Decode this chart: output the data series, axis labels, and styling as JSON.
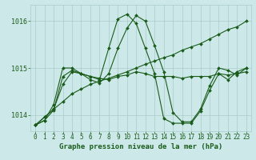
{
  "title": "Graphe pression niveau de la mer (hPa)",
  "bg_color": "#cce8e8",
  "grid_color": "#aacccc",
  "line_color": "#1a5c1a",
  "marker_color": "#1a5c1a",
  "ylim": [
    1013.65,
    1016.35
  ],
  "yticks": [
    1014,
    1015,
    1016
  ],
  "xlim": [
    -0.5,
    23.5
  ],
  "xticks": [
    0,
    1,
    2,
    3,
    4,
    5,
    6,
    7,
    8,
    9,
    10,
    11,
    12,
    13,
    14,
    15,
    16,
    17,
    18,
    19,
    20,
    21,
    22,
    23
  ],
  "series_spike": [
    1013.78,
    1013.88,
    1014.1,
    1014.82,
    1014.95,
    1014.88,
    1014.82,
    1014.75,
    1015.42,
    1016.05,
    1016.15,
    1015.95,
    1015.42,
    1014.88,
    1013.92,
    1013.82,
    1013.82,
    1013.82,
    1014.08,
    1014.52,
    1014.88,
    1014.75,
    1014.92,
    1015.0
  ],
  "series_linear": [
    1013.78,
    1013.95,
    1014.12,
    1014.28,
    1014.45,
    1014.55,
    1014.65,
    1014.72,
    1014.78,
    1014.85,
    1014.92,
    1015.0,
    1015.08,
    1015.15,
    1015.22,
    1015.28,
    1015.38,
    1015.45,
    1015.52,
    1015.62,
    1015.72,
    1015.82,
    1015.88,
    1016.0
  ],
  "series_mid": [
    1013.78,
    1013.95,
    1014.12,
    1014.65,
    1014.92,
    1014.88,
    1014.82,
    1014.78,
    1014.75,
    1014.82,
    1014.85,
    1014.92,
    1014.88,
    1014.82,
    1014.82,
    1014.82,
    1014.78,
    1014.82,
    1014.82,
    1014.82,
    1014.88,
    1014.85,
    1014.88,
    1014.92
  ],
  "series_wavy": [
    1013.78,
    1013.88,
    1014.22,
    1015.0,
    1015.0,
    1014.88,
    1014.75,
    1014.68,
    1014.88,
    1015.42,
    1015.85,
    1016.12,
    1016.0,
    1015.48,
    1014.92,
    1014.05,
    1013.85,
    1013.85,
    1014.12,
    1014.62,
    1015.0,
    1014.95,
    1014.85,
    1015.0
  ]
}
